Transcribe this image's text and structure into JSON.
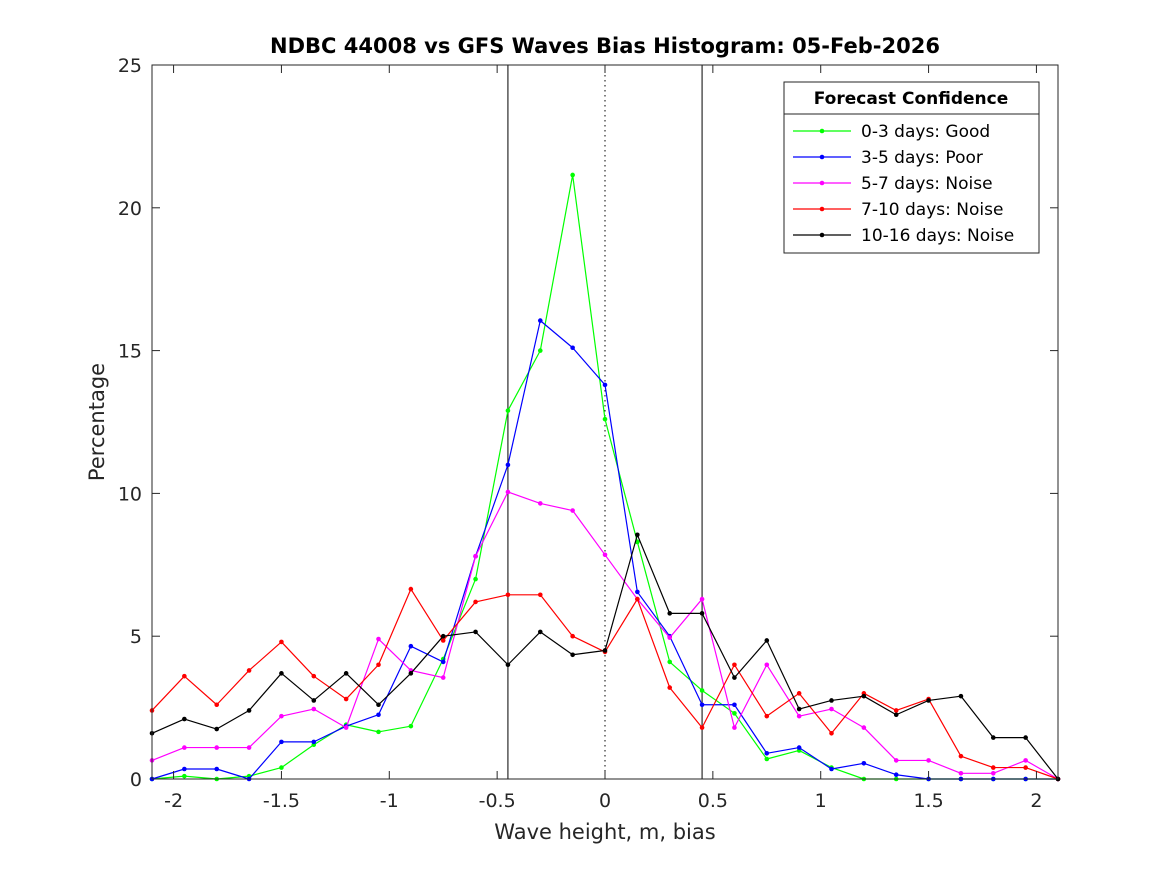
{
  "chart_data": {
    "type": "line",
    "title": "NDBC 44008 vs GFS Waves Bias Histogram: 05-Feb-2026",
    "xlabel": "Wave height, m, bias",
    "ylabel": "Percentage",
    "xlim": [
      -2.1,
      2.1
    ],
    "ylim": [
      0,
      25
    ],
    "xticks": [
      -2,
      -1.5,
      -1,
      -0.5,
      0,
      0.5,
      1,
      1.5,
      2
    ],
    "xtick_labels": [
      "-2",
      "-1.5",
      "-1",
      "-0.5",
      "0",
      "0.5",
      "1",
      "1.5",
      "2"
    ],
    "yticks": [
      0,
      5,
      10,
      15,
      20,
      25
    ],
    "ytick_labels": [
      "0",
      "5",
      "10",
      "15",
      "20",
      "25"
    ],
    "grid": false,
    "legend_title": "Forecast Confidence",
    "legend_position": "top-right",
    "vertical_lines": [
      {
        "x": -0.45,
        "style": "solid"
      },
      {
        "x": 0,
        "style": "dotted"
      },
      {
        "x": 0.45,
        "style": "solid"
      }
    ],
    "x": [
      -2.1,
      -1.95,
      -1.8,
      -1.65,
      -1.5,
      -1.35,
      -1.2,
      -1.05,
      -0.9,
      -0.75,
      -0.6,
      -0.45,
      -0.3,
      -0.15,
      0,
      0.15,
      0.3,
      0.45,
      0.6,
      0.75,
      0.9,
      1.05,
      1.2,
      1.35,
      1.5,
      1.65,
      1.8,
      1.95,
      2.1
    ],
    "series": [
      {
        "name": "0-3 days: Good",
        "color": "#00ff00",
        "values": [
          0,
          0.1,
          0,
          0.1,
          0.4,
          1.2,
          1.9,
          1.65,
          1.85,
          4.2,
          7.0,
          12.9,
          15.0,
          21.15,
          12.6,
          8.3,
          4.1,
          3.1,
          2.3,
          0.7,
          1.0,
          0.4,
          0,
          0,
          0,
          0,
          0,
          0,
          0
        ]
      },
      {
        "name": "3-5 days: Poor",
        "color": "#0000ff",
        "values": [
          0,
          0.35,
          0.35,
          0,
          1.3,
          1.3,
          1.85,
          2.25,
          4.65,
          4.1,
          7.8,
          11.0,
          16.05,
          15.1,
          13.8,
          6.55,
          5.0,
          2.6,
          2.6,
          0.9,
          1.1,
          0.35,
          0.55,
          0.15,
          0,
          0,
          0,
          0,
          0
        ]
      },
      {
        "name": "5-7 days: Noise",
        "color": "#ff00ff",
        "values": [
          0.65,
          1.1,
          1.1,
          1.1,
          2.2,
          2.45,
          1.8,
          4.9,
          3.8,
          3.55,
          7.8,
          10.05,
          9.65,
          9.4,
          7.85,
          6.3,
          4.95,
          6.3,
          1.8,
          4.0,
          2.2,
          2.45,
          1.8,
          0.65,
          0.65,
          0.2,
          0.2,
          0.65,
          0
        ]
      },
      {
        "name": "7-10 days: Noise",
        "color": "#ff0000",
        "values": [
          2.4,
          3.6,
          2.6,
          3.8,
          4.8,
          3.6,
          2.8,
          4.0,
          6.65,
          4.85,
          6.2,
          6.45,
          6.45,
          5.0,
          4.45,
          6.3,
          3.2,
          1.8,
          4.0,
          2.2,
          3.0,
          1.6,
          3.0,
          2.4,
          2.8,
          0.8,
          0.4,
          0.4,
          0
        ]
      },
      {
        "name": "10-16 days: Noise",
        "color": "#000000",
        "values": [
          1.6,
          2.1,
          1.75,
          2.4,
          3.7,
          2.75,
          3.7,
          2.6,
          3.7,
          5.0,
          5.15,
          4.0,
          5.15,
          4.35,
          4.5,
          8.55,
          5.8,
          5.8,
          3.55,
          4.85,
          2.45,
          2.75,
          2.9,
          2.25,
          2.75,
          2.9,
          1.45,
          1.45,
          0
        ]
      }
    ]
  }
}
